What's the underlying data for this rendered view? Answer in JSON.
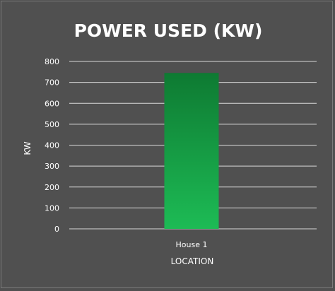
{
  "chart_data": {
    "type": "bar",
    "title": "POWER USED (KW)",
    "xlabel": "LOCATION",
    "ylabel": "KW",
    "categories": [
      "House 1"
    ],
    "series": [
      {
        "values": [
          745
        ]
      }
    ],
    "ylim": [
      0,
      800
    ],
    "yticks": [
      0,
      100,
      200,
      300,
      400,
      500,
      600,
      700,
      800
    ],
    "grid": true,
    "legend": "none",
    "colors": {
      "background": "#505050",
      "border": "#7a7a7a",
      "gridline": "#d9d9d9",
      "text": "#ffffff",
      "bar_top": "#0e7a32",
      "bar_bottom": "#1dbb55"
    }
  }
}
